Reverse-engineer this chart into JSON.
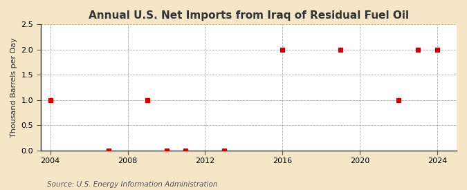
{
  "title": "Annual U.S. Net Imports from Iraq of Residual Fuel Oil",
  "ylabel": "Thousand Barrels per Day",
  "source_text": "Source: U.S. Energy Information Administration",
  "background_color": "#f5e6c8",
  "plot_bg_color": "#ffffff",
  "marker_color": "#cc0000",
  "marker_style": "s",
  "marker_size": 4,
  "xlim": [
    2003.5,
    2025
  ],
  "ylim": [
    0.0,
    2.5
  ],
  "xticks": [
    2004,
    2008,
    2012,
    2016,
    2020,
    2024
  ],
  "yticks": [
    0.0,
    0.5,
    1.0,
    1.5,
    2.0,
    2.5
  ],
  "grid_color": "#aaaaaa",
  "grid_style": "--",
  "data_x": [
    2004,
    2007,
    2009,
    2010,
    2011,
    2013,
    2016,
    2019,
    2022,
    2023,
    2024
  ],
  "data_y": [
    1.0,
    0.0,
    1.0,
    0.0,
    0.0,
    0.0,
    2.0,
    2.0,
    1.0,
    2.0,
    2.0
  ],
  "title_fontsize": 11,
  "label_fontsize": 8,
  "tick_fontsize": 8,
  "source_fontsize": 7.5
}
